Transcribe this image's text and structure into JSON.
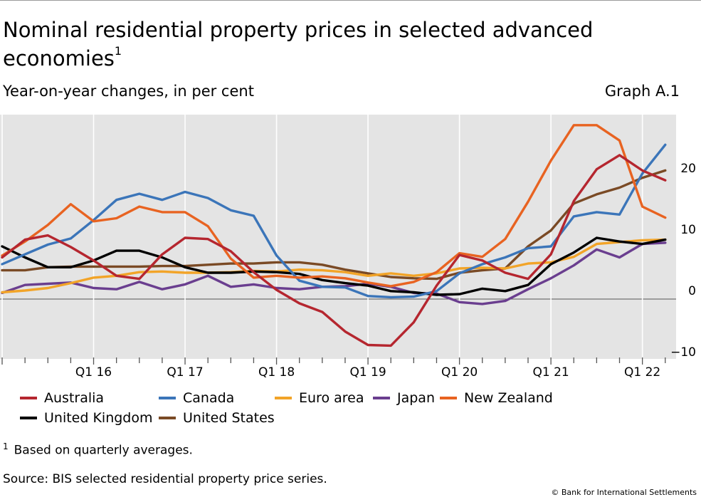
{
  "header": {
    "title": "Nominal residential property prices in selected advanced economies",
    "title_sup": "1",
    "subtitle": "Year-on-year changes, in per cent",
    "graph_id": "Graph A.1"
  },
  "footer": {
    "footnote_mark": "1",
    "footnote": "Based on quarterly averages.",
    "source": "Source: BIS selected residential property price series.",
    "copyright": "© Bank for International Settlements"
  },
  "chart_data": {
    "type": "line",
    "x": [
      "Q1 15",
      "Q2 15",
      "Q3 15",
      "Q4 15",
      "Q1 16",
      "Q2 16",
      "Q3 16",
      "Q4 16",
      "Q1 17",
      "Q2 17",
      "Q3 17",
      "Q4 17",
      "Q1 18",
      "Q2 18",
      "Q3 18",
      "Q4 18",
      "Q1 19",
      "Q2 19",
      "Q3 19",
      "Q4 19",
      "Q1 20",
      "Q2 20",
      "Q3 20",
      "Q4 20",
      "Q1 21",
      "Q2 21",
      "Q3 21",
      "Q4 21",
      "Q1 22",
      "Q2 22"
    ],
    "x_tick_labels": [
      "Q1 16",
      "Q1 17",
      "Q1 18",
      "Q1 19",
      "Q1 20",
      "Q1 21",
      "Q1 22"
    ],
    "y_ticks": [
      -10,
      0,
      10,
      20
    ],
    "ylim": [
      -10,
      29
    ],
    "y_axis_side": "right",
    "grid": false,
    "background": "#e4e4e4",
    "legend_position": "bottom",
    "series": [
      {
        "name": "Australia",
        "color": "#b5262f",
        "values": [
          6.8,
          9.7,
          10.4,
          8.5,
          6.3,
          3.8,
          3.3,
          7.3,
          10.0,
          9.8,
          7.8,
          4.4,
          1.5,
          -0.7,
          -2.1,
          -5.3,
          -7.5,
          -7.6,
          -3.8,
          2.2,
          7.2,
          6.3,
          4.3,
          3.3,
          7.3,
          16.0,
          21.2,
          23.5,
          21.0,
          19.4
        ]
      },
      {
        "name": "Canada",
        "color": "#3b75b9",
        "values": [
          5.7,
          7.3,
          8.9,
          9.9,
          12.9,
          16.2,
          17.2,
          16.2,
          17.5,
          16.5,
          14.5,
          13.6,
          7.1,
          3.0,
          2.0,
          1.9,
          0.5,
          0.3,
          0.4,
          1.3,
          4.2,
          5.7,
          6.8,
          8.3,
          8.6,
          13.5,
          14.2,
          13.8,
          20.5,
          25.2
        ]
      },
      {
        "name": "Euro area",
        "color": "#f2a428",
        "values": [
          1.1,
          1.4,
          1.8,
          2.6,
          3.5,
          3.8,
          4.4,
          4.5,
          4.3,
          4.3,
          4.4,
          4.6,
          4.5,
          4.8,
          4.7,
          4.4,
          3.8,
          4.2,
          3.8,
          4.2,
          5.0,
          5.1,
          5.0,
          5.8,
          6.0,
          6.9,
          9.0,
          9.3,
          9.6,
          9.7
        ]
      },
      {
        "name": "Japan",
        "color": "#6a3e8f",
        "values": [
          1.0,
          2.3,
          2.5,
          2.7,
          1.8,
          1.6,
          2.8,
          1.6,
          2.4,
          3.8,
          2.0,
          2.4,
          1.8,
          1.6,
          2.0,
          2.1,
          2.5,
          2.0,
          1.0,
          0.9,
          -0.5,
          -0.8,
          -0.3,
          1.6,
          3.4,
          5.5,
          8.1,
          6.8,
          9.0,
          9.2
        ]
      },
      {
        "name": "New Zealand",
        "color": "#e86321",
        "values": [
          7.1,
          9.4,
          12.1,
          15.5,
          12.7,
          13.2,
          15.1,
          14.2,
          14.2,
          11.9,
          6.6,
          3.5,
          3.8,
          3.5,
          3.7,
          3.4,
          2.7,
          2.1,
          2.8,
          4.4,
          7.5,
          6.9,
          9.8,
          15.9,
          22.6,
          28.4,
          28.4,
          25.9,
          15.1,
          13.3
        ]
      },
      {
        "name": "United Kingdom",
        "color": "#000000",
        "values": [
          8.6,
          6.8,
          5.2,
          5.2,
          6.3,
          7.9,
          7.9,
          6.8,
          5.2,
          4.3,
          4.3,
          4.5,
          4.4,
          4.1,
          3.1,
          2.6,
          2.2,
          1.3,
          1.1,
          0.7,
          0.8,
          1.7,
          1.3,
          2.3,
          5.7,
          7.6,
          10.0,
          9.4,
          9.0,
          9.7
        ]
      },
      {
        "name": "United States",
        "color": "#7a4a25",
        "values": [
          4.7,
          4.7,
          5.2,
          5.3,
          5.3,
          5.3,
          5.3,
          5.4,
          5.4,
          5.6,
          5.8,
          5.8,
          6.0,
          6.0,
          5.6,
          4.8,
          4.2,
          3.6,
          3.4,
          3.3,
          4.3,
          4.7,
          5.0,
          8.6,
          11.2,
          15.6,
          17.1,
          18.2,
          19.8,
          21.0
        ]
      }
    ]
  }
}
